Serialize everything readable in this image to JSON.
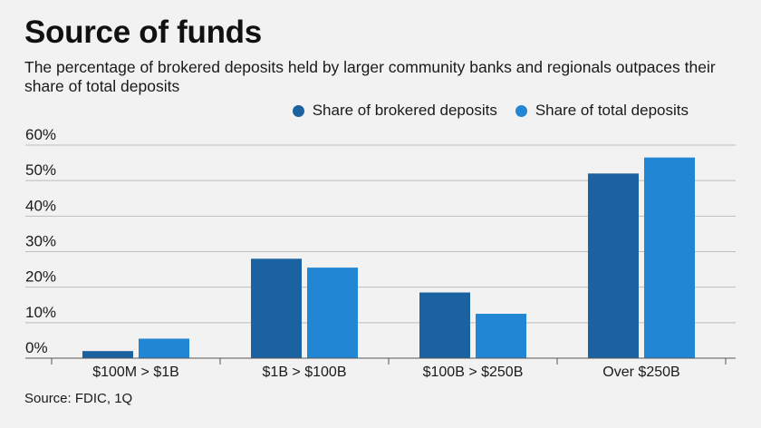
{
  "title": "Source of funds",
  "subtitle": "The percentage of brokered deposits held by larger community banks and regionals outpaces their share of total deposits",
  "source": "Source: FDIC, 1Q",
  "colors": {
    "brokered": "#1b63a0",
    "total": "#2186d4",
    "grid": "#bdbdbd",
    "axis": "#555555"
  },
  "chart_data": {
    "type": "bar",
    "categories": [
      "$100M > $1B",
      "$1B > $100B",
      "$100B > $250B",
      "Over $250B"
    ],
    "series": [
      {
        "name": "Share of brokered deposits",
        "values": [
          2,
          28,
          18.5,
          52
        ]
      },
      {
        "name": "Share of total deposits",
        "values": [
          5.5,
          25.5,
          12.5,
          56.5
        ]
      }
    ],
    "ylim": [
      0,
      60
    ],
    "yticks": [
      "0%",
      "10%",
      "20%",
      "30%",
      "40%",
      "50%",
      "60%"
    ],
    "grid": true,
    "legend_position": "top-right"
  }
}
